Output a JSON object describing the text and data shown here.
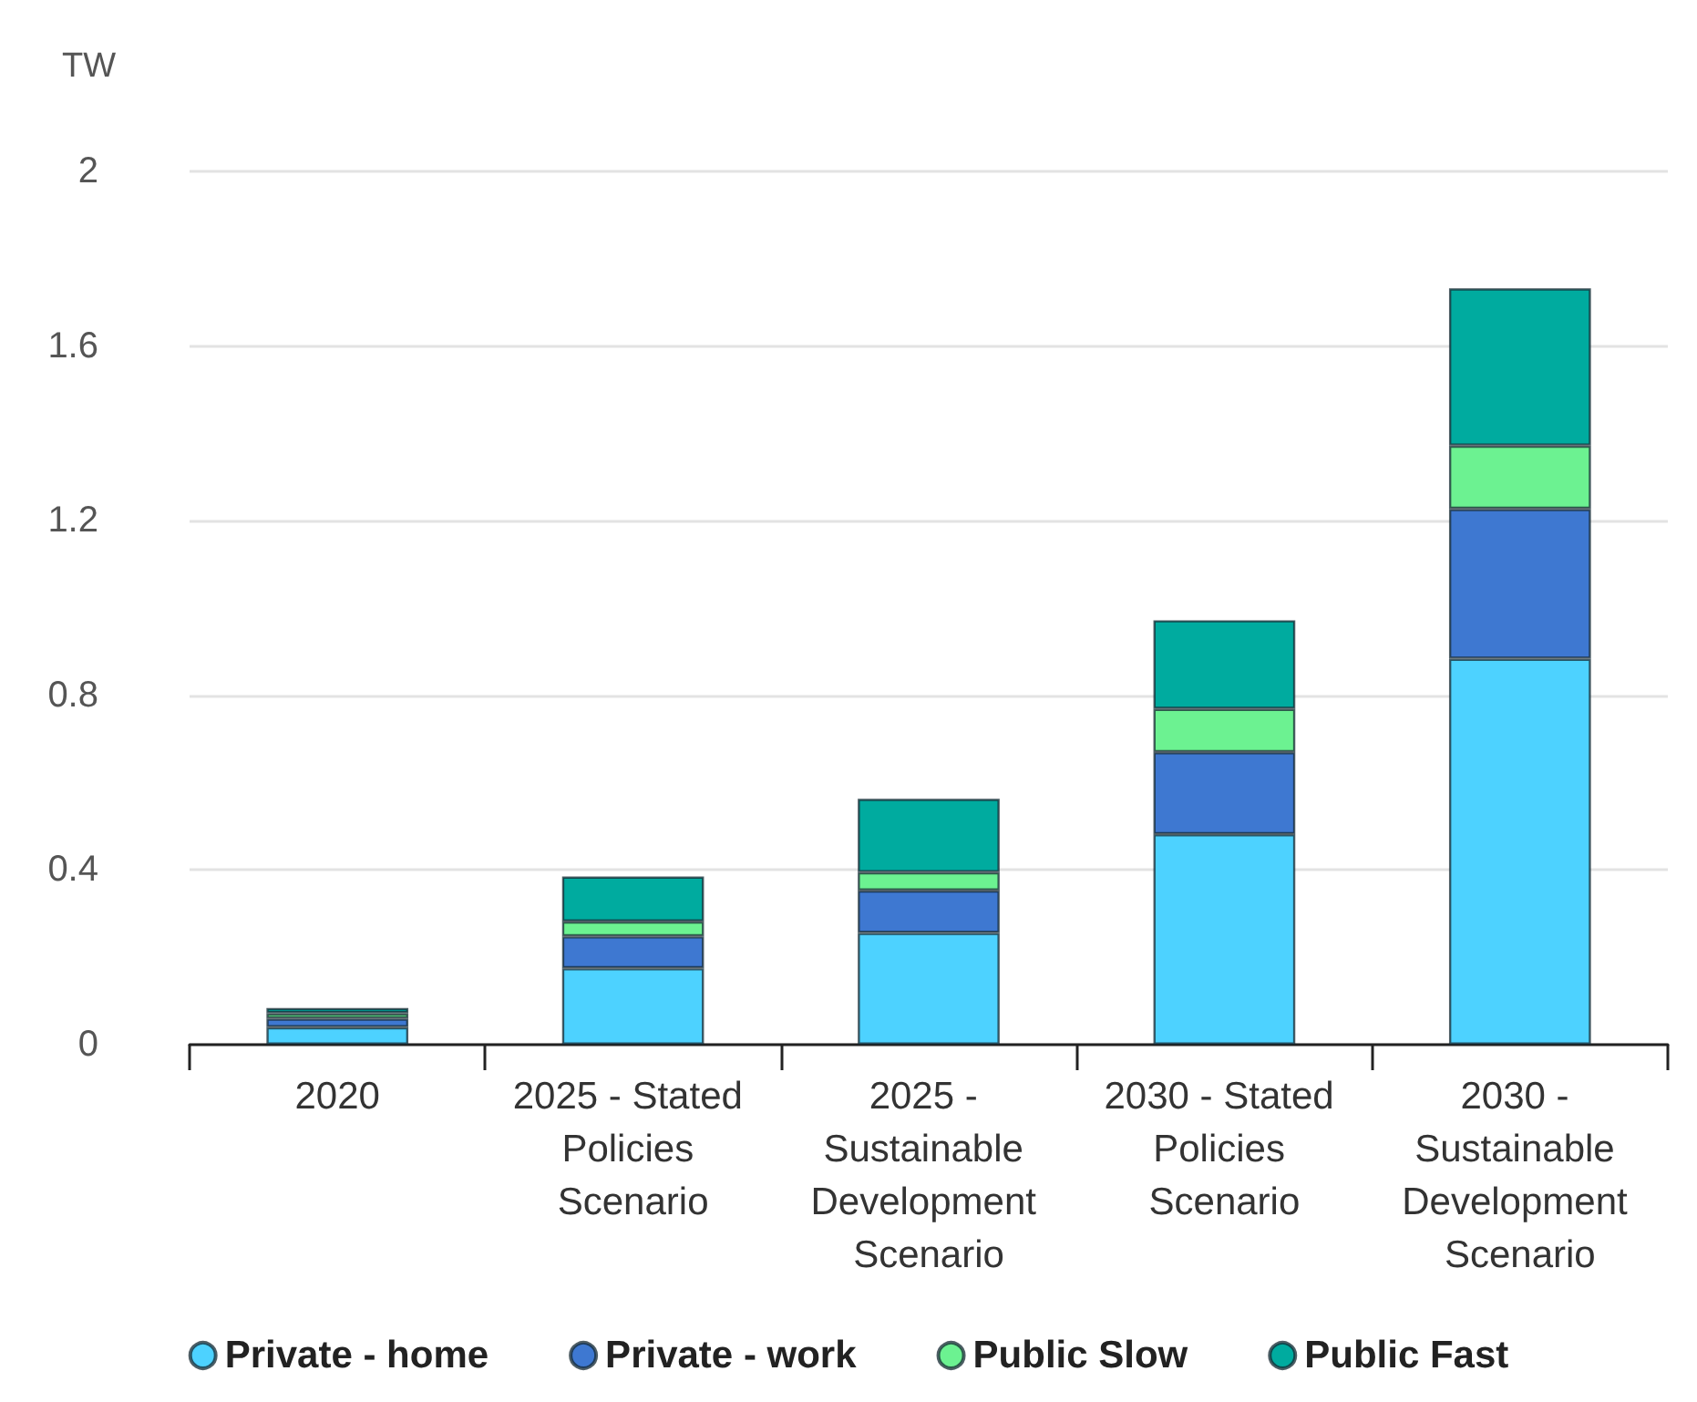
{
  "chart_data": {
    "type": "bar",
    "stacked": true,
    "ylabel": "TW",
    "categories": [
      "2020",
      "2025 - Stated Policies Scenario",
      "2025 - Sustainable Development Scenario",
      "2030 - Stated Policies Scenario",
      "2030 - Sustainable Development Scenario"
    ],
    "series": [
      {
        "name": "Private - home",
        "color": "#4dd2ff",
        "values": [
          0.04,
          0.175,
          0.256,
          0.482,
          0.884
        ]
      },
      {
        "name": "Private - work",
        "color": "#3e78d1",
        "values": [
          0.02,
          0.073,
          0.097,
          0.188,
          0.343
        ]
      },
      {
        "name": "Public Slow",
        "color": "#6cf291",
        "values": [
          0.012,
          0.034,
          0.042,
          0.099,
          0.145
        ]
      },
      {
        "name": "Public Fast",
        "color": "#00ab9f",
        "values": [
          0.012,
          0.103,
          0.168,
          0.203,
          0.36
        ]
      }
    ],
    "ylim": [
      0,
      2
    ],
    "yticks": [
      0,
      0.4,
      0.8,
      1.2,
      1.6,
      2
    ],
    "grid": "y",
    "legend": "bottom"
  }
}
